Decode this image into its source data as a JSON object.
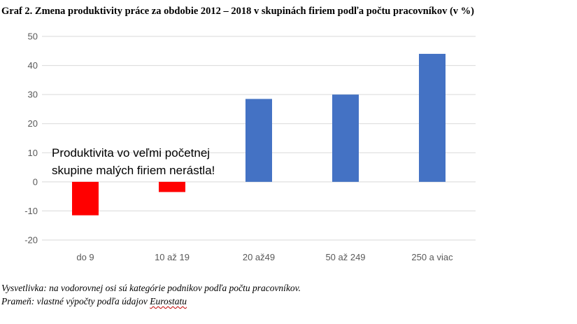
{
  "chart_data": {
    "type": "bar",
    "title": "Graf 2. Zmena produktivity práce za obdobie 2012 – 2018 v skupinách firiem podľa počtu pracovníkov (v %)",
    "categories": [
      "do 9",
      "10 až 19",
      "20 až49",
      "50 až 249",
      "250 a viac"
    ],
    "values": [
      -11.5,
      -3.5,
      28.5,
      30,
      44
    ],
    "bar_colors": [
      "#ff0000",
      "#ff0000",
      "#4472c4",
      "#4472c4",
      "#4472c4"
    ],
    "ylim": [
      -20,
      50
    ],
    "yticks": [
      50,
      40,
      30,
      20,
      10,
      0,
      -10,
      -20
    ],
    "ytick_labels": [
      "50",
      "40",
      "30",
      "20",
      "10",
      "0",
      "-10",
      "-20"
    ],
    "grid": true,
    "gridline_color": "#d9d9d9",
    "annotation": {
      "line1": "Produktivita vo veľmi početnej",
      "line2": "skupine malých firiem nerástla!"
    }
  },
  "notes": {
    "line1": "Vysvetlivka: na vodorovnej osi sú kategórie podnikov podľa počtu pracovníkov.",
    "line2_prefix": "Prameň: vlastné výpočty podľa údajov ",
    "line2_source": "Eurostatu"
  }
}
